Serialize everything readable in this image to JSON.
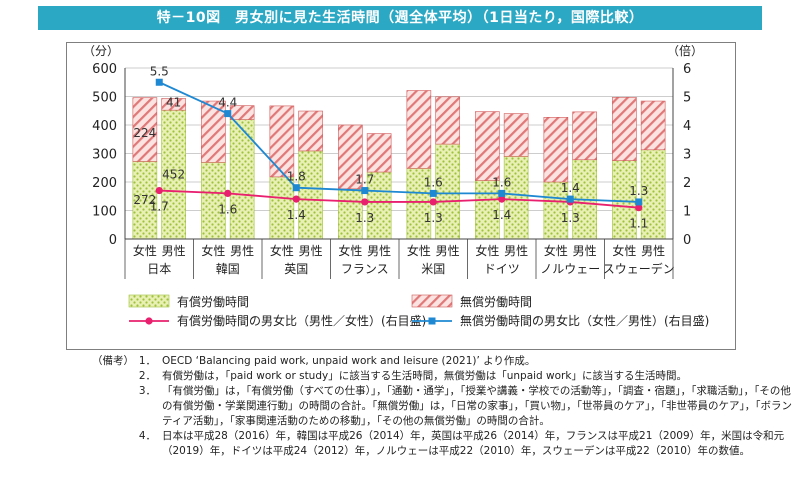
{
  "title": "特－10図　男女別に見た生活時間（週全体平均）（1日当たり，国際比較）",
  "notes": {
    "heading": "（備考）",
    "items": [
      {
        "num": "1．",
        "text": "OECD ‘Balancing paid work, unpaid work and leisure (2021)’ より作成。"
      },
      {
        "num": "2．",
        "text": "有償労働は，「paid work or study」に該当する生活時間，無償労働は「unpaid work」に該当する生活時間。"
      },
      {
        "num": "3．",
        "text": "「有償労働」は，「有償労働（すべての仕事）」，「通勤・通学」，「授業や講義・学校での活動等」，「調査・宿題」，「求職活動」，「その他の有償労働・学業関連行動」の時間の合計。「無償労働」は，「日常の家事」，「買い物」，「世帯員のケア」，「非世帯員のケア」，「ボランティア活動」，「家事関連活動のための移動」，「その他の無償労働」の時間の合計。"
      },
      {
        "num": "4．",
        "text": "日本は平成28（2016）年，韓国は平成26（2014）年，英国は平成26（2014）年，フランスは平成21（2009）年，米国は令和元（2019）年，ドイツは平成24（2012）年，ノルウェーは平成22（2010）年，スウェーデンは平成22（2010）年の数値。"
      }
    ]
  },
  "chart_data": {
    "type": "bar",
    "stacked": true,
    "y_left": {
      "unit": "（分）",
      "range": [
        0,
        600
      ],
      "ticks": [
        "0",
        "100",
        "200",
        "300",
        "400",
        "500",
        "600"
      ]
    },
    "y_right": {
      "unit": "（倍）",
      "range": [
        0,
        6
      ],
      "ticks": [
        "0",
        "1",
        "2",
        "3",
        "4",
        "5",
        "6"
      ]
    },
    "sex_labels": [
      "女性",
      "男性"
    ],
    "countries": [
      "日本",
      "韓国",
      "英国",
      "フランス",
      "米国",
      "ドイツ",
      "ノルウェー",
      "スウェーデン"
    ],
    "series": [
      {
        "name": "有償労働時間",
        "color": "#c8dc6e",
        "female": [
          272,
          269,
          218,
          176,
          248,
          205,
          200,
          275
        ],
        "male": [
          452,
          419,
          309,
          235,
          333,
          290,
          278,
          313
        ]
      },
      {
        "name": "無償労働時間",
        "color": "#e07878",
        "female": [
          224,
          215,
          249,
          224,
          273,
          242,
          227,
          222
        ],
        "male": [
          41,
          49,
          140,
          135,
          166,
          150,
          168,
          171
        ]
      }
    ],
    "lines": [
      {
        "name": "有償労働時間の男女比（男性／女性）(右目盛)",
        "color": "#e8206e",
        "axis": "right",
        "values": [
          1.7,
          1.6,
          1.4,
          1.3,
          1.3,
          1.4,
          1.3,
          1.1
        ]
      },
      {
        "name": "無償労働時間の男女比（女性／男性）(右目盛)",
        "color": "#1e88d2",
        "axis": "right",
        "values": [
          5.5,
          4.4,
          1.8,
          1.7,
          1.6,
          1.6,
          1.4,
          1.3
        ]
      }
    ],
    "data_labels": [
      {
        "text": "224",
        "series": "無償労働時間",
        "sex": "female",
        "country": 0
      },
      {
        "text": "272",
        "series": "有償労働時間",
        "sex": "female",
        "country": 0
      },
      {
        "text": "41",
        "series": "無償労働時間",
        "sex": "male",
        "country": 0
      },
      {
        "text": "452",
        "series": "有償労働時間",
        "sex": "male",
        "country": 0
      }
    ],
    "legend": "bottom"
  }
}
